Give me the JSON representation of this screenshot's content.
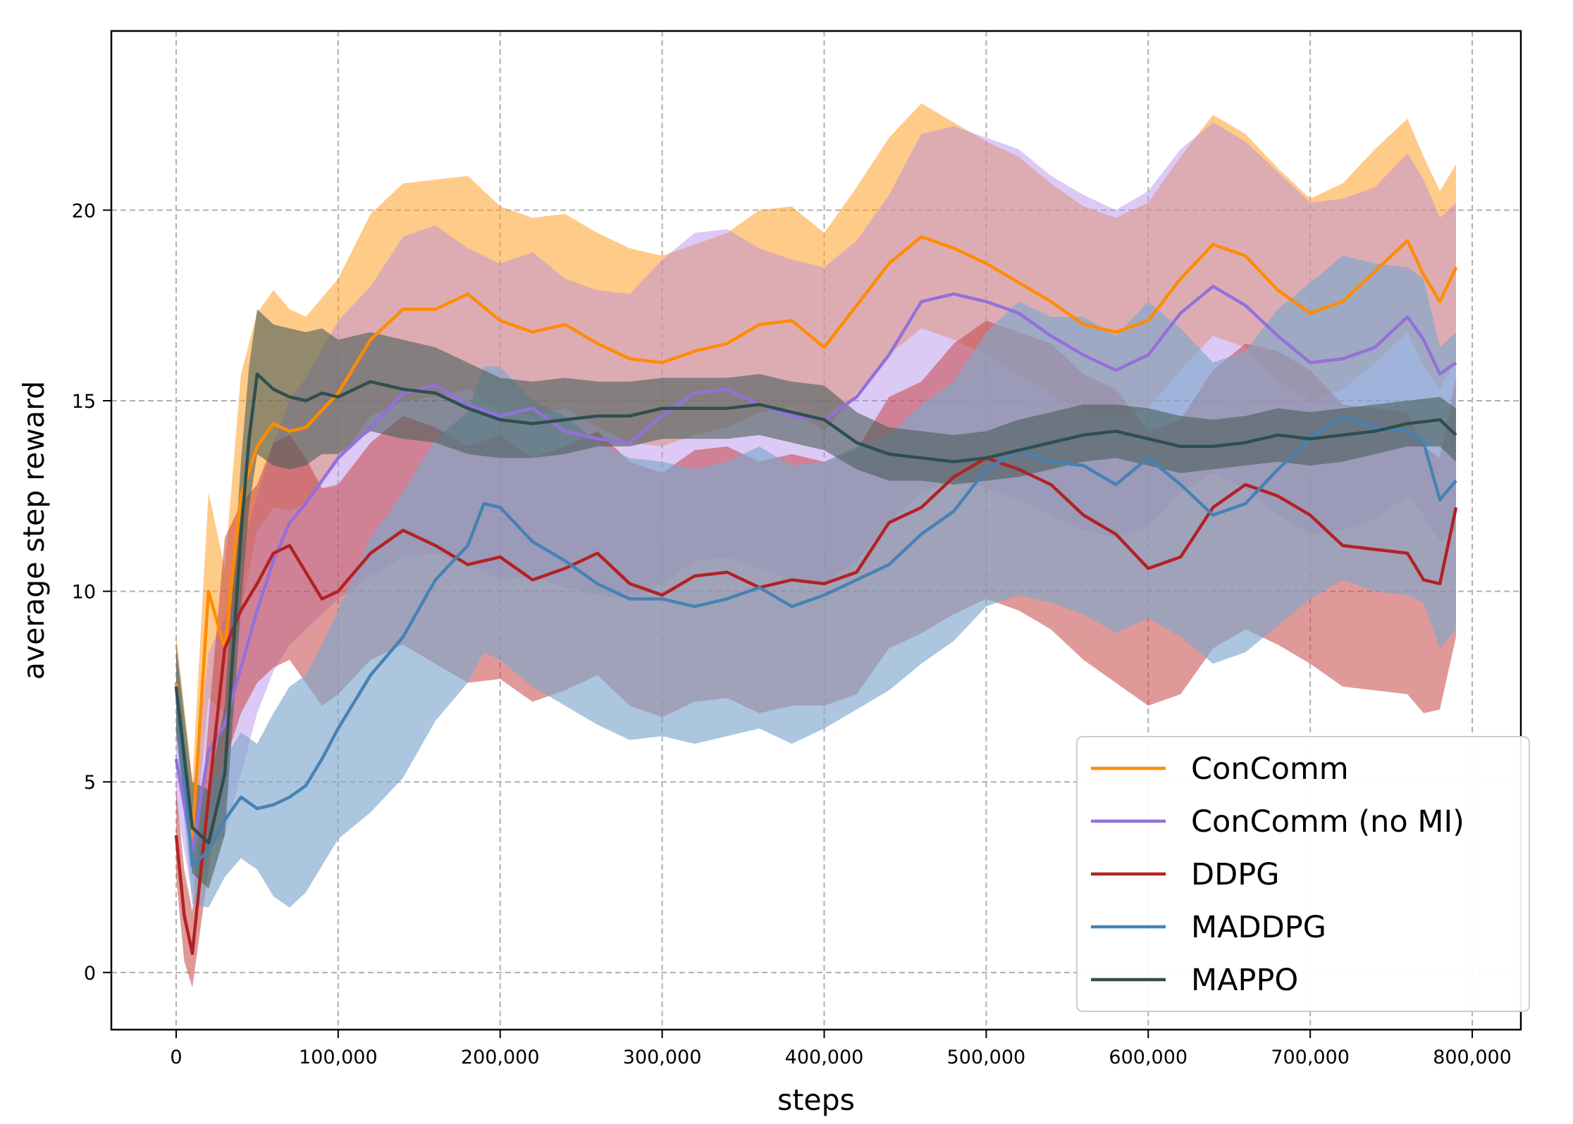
{
  "chart_data": {
    "type": "line",
    "title": "",
    "xlabel": "steps",
    "ylabel": "average step reward",
    "xlim": [
      -40000,
      830000
    ],
    "ylim": [
      -1.5,
      24.7
    ],
    "grid": true,
    "legend_position": "lower-right",
    "xticks": [
      0,
      100000,
      200000,
      300000,
      400000,
      500000,
      600000,
      700000,
      800000
    ],
    "xtick_labels": [
      "0",
      "100,000",
      "200,000",
      "300,000",
      "400,000",
      "500,000",
      "600,000",
      "700,000",
      "800,000"
    ],
    "yticks": [
      0,
      5,
      10,
      15,
      20
    ],
    "ytick_labels": [
      "0",
      "5",
      "10",
      "15",
      "20"
    ],
    "series": [
      {
        "name": "ConComm",
        "color": "#ff8c00",
        "band_color": "#ffa126",
        "band_opacity": 0.55,
        "x": [
          0,
          10000,
          20000,
          30000,
          40000,
          50000,
          60000,
          70000,
          80000,
          100000,
          120000,
          140000,
          160000,
          180000,
          200000,
          220000,
          240000,
          260000,
          280000,
          300000,
          320000,
          340000,
          360000,
          380000,
          400000,
          420000,
          440000,
          460000,
          480000,
          500000,
          520000,
          540000,
          560000,
          580000,
          600000,
          620000,
          640000,
          660000,
          680000,
          700000,
          720000,
          740000,
          760000,
          770000,
          780000,
          790000
        ],
        "y": [
          7.6,
          3.5,
          10.0,
          8.5,
          12.5,
          13.8,
          14.4,
          14.2,
          14.3,
          15.2,
          16.6,
          17.4,
          17.4,
          17.8,
          17.1,
          16.8,
          17.0,
          16.5,
          16.1,
          16.0,
          16.3,
          16.5,
          17.0,
          17.1,
          16.4,
          17.5,
          18.6,
          19.3,
          19.0,
          18.6,
          18.1,
          17.6,
          17.0,
          16.8,
          17.1,
          18.2,
          19.1,
          18.8,
          17.9,
          17.3,
          17.6,
          18.4,
          19.2,
          18.3,
          17.6,
          18.5
        ],
        "low": [
          6.4,
          2.6,
          7.2,
          6.8,
          9.5,
          11.6,
          12.2,
          12.1,
          12.3,
          13.4,
          14.6,
          15.0,
          15.1,
          15.3,
          14.8,
          14.6,
          14.8,
          14.3,
          13.9,
          13.8,
          14.1,
          14.3,
          14.7,
          14.8,
          14.2,
          15.2,
          16.2,
          16.9,
          16.6,
          16.2,
          15.7,
          15.2,
          14.7,
          14.5,
          14.8,
          15.8,
          16.7,
          16.4,
          15.5,
          15.0,
          15.3,
          16.0,
          16.8,
          15.9,
          15.3,
          16.1
        ],
        "high": [
          8.9,
          5.0,
          12.6,
          10.6,
          15.7,
          17.3,
          17.9,
          17.4,
          17.2,
          18.2,
          19.9,
          20.7,
          20.8,
          20.9,
          20.1,
          19.8,
          19.9,
          19.4,
          19.0,
          18.8,
          19.1,
          19.4,
          20.0,
          20.1,
          19.4,
          20.6,
          21.9,
          22.8,
          22.3,
          21.8,
          21.4,
          20.7,
          20.1,
          19.8,
          20.2,
          21.4,
          22.5,
          22.0,
          21.1,
          20.3,
          20.7,
          21.6,
          22.4,
          21.4,
          20.5,
          21.2
        ]
      },
      {
        "name": "ConComm (no MI)",
        "color": "#9370db",
        "band_color": "#b487e8",
        "band_opacity": 0.45,
        "x": [
          0,
          10000,
          20000,
          30000,
          40000,
          50000,
          60000,
          70000,
          80000,
          100000,
          120000,
          140000,
          160000,
          180000,
          200000,
          220000,
          240000,
          260000,
          280000,
          300000,
          320000,
          340000,
          360000,
          380000,
          400000,
          420000,
          440000,
          460000,
          480000,
          500000,
          520000,
          540000,
          560000,
          580000,
          600000,
          620000,
          640000,
          660000,
          680000,
          700000,
          720000,
          740000,
          760000,
          770000,
          780000,
          790000
        ],
        "y": [
          5.6,
          3.2,
          5.8,
          6.5,
          8.0,
          9.5,
          10.8,
          11.8,
          12.3,
          13.5,
          14.3,
          15.2,
          15.4,
          14.9,
          14.6,
          14.8,
          14.2,
          14.0,
          13.9,
          14.6,
          15.2,
          15.3,
          14.9,
          14.6,
          14.5,
          15.1,
          16.2,
          17.6,
          17.8,
          17.6,
          17.3,
          16.7,
          16.2,
          15.8,
          16.2,
          17.3,
          18.0,
          17.5,
          16.7,
          16.0,
          16.1,
          16.4,
          17.2,
          16.6,
          15.7,
          16.0
        ],
        "low": [
          4.4,
          2.0,
          3.2,
          3.6,
          5.2,
          6.8,
          7.9,
          8.6,
          9.0,
          9.8,
          10.4,
          10.9,
          11.0,
          10.7,
          10.3,
          10.4,
          10.1,
          9.9,
          9.8,
          10.2,
          10.8,
          10.9,
          10.6,
          10.3,
          10.2,
          10.8,
          11.8,
          12.6,
          12.9,
          12.7,
          12.4,
          12.0,
          11.6,
          11.4,
          11.7,
          12.6,
          13.1,
          12.7,
          12.0,
          11.5,
          11.6,
          11.9,
          12.5,
          12.0,
          11.3,
          11.6
        ],
        "high": [
          6.9,
          4.6,
          8.4,
          9.3,
          11.0,
          12.5,
          13.9,
          15.0,
          15.6,
          17.1,
          18.0,
          19.3,
          19.6,
          19.0,
          18.6,
          18.9,
          18.2,
          17.9,
          17.8,
          18.7,
          19.4,
          19.5,
          19.0,
          18.7,
          18.5,
          19.2,
          20.4,
          22.0,
          22.2,
          21.9,
          21.6,
          20.9,
          20.4,
          20.0,
          20.5,
          21.6,
          22.3,
          21.8,
          21.0,
          20.2,
          20.3,
          20.6,
          21.5,
          20.8,
          19.8,
          20.2
        ]
      },
      {
        "name": "DDPG",
        "color": "#b22222",
        "band_color": "#c44545",
        "band_opacity": 0.55,
        "x": [
          0,
          5000,
          10000,
          20000,
          30000,
          40000,
          50000,
          60000,
          70000,
          80000,
          90000,
          100000,
          120000,
          140000,
          160000,
          180000,
          200000,
          220000,
          240000,
          260000,
          280000,
          300000,
          320000,
          340000,
          360000,
          380000,
          400000,
          420000,
          440000,
          460000,
          480000,
          500000,
          520000,
          540000,
          560000,
          580000,
          600000,
          620000,
          640000,
          660000,
          680000,
          700000,
          720000,
          740000,
          760000,
          770000,
          780000,
          790000
        ],
        "y": [
          3.6,
          1.5,
          0.5,
          4.6,
          8.5,
          9.5,
          10.2,
          11.0,
          11.2,
          10.5,
          9.8,
          10.0,
          11.0,
          11.6,
          11.2,
          10.7,
          10.9,
          10.3,
          10.6,
          11.0,
          10.2,
          9.9,
          10.4,
          10.5,
          10.1,
          10.3,
          10.2,
          10.5,
          11.8,
          12.2,
          13.0,
          13.5,
          13.2,
          12.8,
          12.0,
          11.5,
          10.6,
          10.9,
          12.2,
          12.8,
          12.5,
          12.0,
          11.2,
          11.1,
          11.0,
          10.3,
          10.2,
          12.2
        ],
        "low": [
          2.5,
          0.3,
          -0.4,
          2.7,
          5.5,
          6.8,
          7.6,
          8.0,
          8.2,
          7.6,
          7.0,
          7.3,
          8.2,
          8.6,
          8.1,
          7.6,
          7.7,
          7.1,
          7.4,
          7.8,
          7.0,
          6.7,
          7.1,
          7.2,
          6.8,
          7.0,
          7.0,
          7.3,
          8.5,
          8.9,
          9.4,
          9.8,
          9.5,
          9.0,
          8.2,
          7.6,
          7.0,
          7.3,
          8.5,
          9.0,
          8.6,
          8.1,
          7.5,
          7.4,
          7.3,
          6.8,
          6.9,
          8.8
        ],
        "high": [
          4.8,
          2.7,
          1.6,
          6.6,
          11.4,
          12.3,
          12.8,
          13.9,
          14.1,
          13.5,
          12.7,
          12.8,
          13.9,
          14.6,
          14.3,
          13.8,
          14.1,
          13.5,
          13.8,
          14.2,
          13.4,
          13.1,
          13.7,
          13.8,
          13.4,
          13.6,
          13.4,
          13.7,
          15.1,
          15.5,
          16.5,
          17.1,
          16.8,
          16.5,
          15.7,
          15.3,
          14.2,
          14.5,
          15.8,
          16.5,
          16.3,
          15.8,
          14.9,
          14.8,
          14.7,
          13.8,
          13.5,
          15.6
        ]
      },
      {
        "name": "MADDPG",
        "color": "#4682b4",
        "band_color": "#7ea7cc",
        "band_opacity": 0.65,
        "x": [
          0,
          10000,
          20000,
          30000,
          40000,
          50000,
          60000,
          70000,
          80000,
          90000,
          100000,
          120000,
          140000,
          160000,
          180000,
          190000,
          200000,
          220000,
          240000,
          260000,
          280000,
          300000,
          320000,
          340000,
          360000,
          380000,
          400000,
          420000,
          440000,
          460000,
          480000,
          500000,
          520000,
          540000,
          560000,
          580000,
          600000,
          620000,
          640000,
          660000,
          680000,
          700000,
          720000,
          740000,
          760000,
          770000,
          780000,
          790000
        ],
        "y": [
          7.5,
          2.8,
          3.2,
          4.0,
          4.6,
          4.3,
          4.4,
          4.6,
          4.9,
          5.6,
          6.4,
          7.8,
          8.8,
          10.3,
          11.2,
          12.3,
          12.2,
          11.3,
          10.8,
          10.2,
          9.8,
          9.8,
          9.6,
          9.8,
          10.1,
          9.6,
          9.9,
          10.3,
          10.7,
          11.5,
          12.1,
          13.2,
          13.7,
          13.4,
          13.3,
          12.8,
          13.5,
          12.8,
          12.0,
          12.3,
          13.2,
          14.0,
          14.6,
          14.3,
          14.2,
          13.9,
          12.4,
          12.9
        ],
        "low": [
          6.3,
          1.8,
          1.7,
          2.5,
          3.0,
          2.7,
          2.0,
          1.7,
          2.1,
          2.8,
          3.5,
          4.2,
          5.1,
          6.6,
          7.6,
          8.4,
          8.2,
          7.5,
          7.0,
          6.5,
          6.1,
          6.2,
          6.0,
          6.2,
          6.4,
          6.0,
          6.4,
          6.9,
          7.4,
          8.1,
          8.7,
          9.6,
          9.9,
          9.7,
          9.4,
          8.9,
          9.3,
          8.8,
          8.1,
          8.4,
          9.1,
          9.8,
          10.3,
          10.0,
          9.9,
          9.7,
          8.5,
          9.0
        ],
        "high": [
          8.6,
          4.0,
          4.8,
          5.6,
          6.3,
          6.0,
          6.8,
          7.5,
          7.8,
          8.6,
          9.5,
          11.4,
          12.6,
          14.0,
          14.7,
          15.9,
          15.9,
          15.0,
          14.6,
          13.9,
          13.5,
          13.4,
          13.2,
          13.4,
          13.8,
          13.3,
          13.4,
          13.8,
          14.1,
          14.9,
          15.5,
          16.8,
          17.6,
          17.2,
          17.2,
          16.7,
          17.6,
          16.9,
          16.0,
          16.3,
          17.4,
          18.1,
          18.8,
          18.6,
          18.5,
          18.2,
          16.4,
          16.8
        ]
      },
      {
        "name": "MAPPO",
        "color": "#2f4f4f",
        "band_color": "#4b5f5a",
        "band_opacity": 0.6,
        "x": [
          0,
          10000,
          20000,
          30000,
          40000,
          45000,
          50000,
          60000,
          70000,
          80000,
          90000,
          100000,
          120000,
          140000,
          160000,
          180000,
          200000,
          220000,
          240000,
          260000,
          280000,
          300000,
          320000,
          340000,
          360000,
          380000,
          400000,
          420000,
          440000,
          460000,
          480000,
          500000,
          520000,
          540000,
          560000,
          580000,
          600000,
          620000,
          640000,
          660000,
          680000,
          700000,
          720000,
          740000,
          760000,
          780000,
          790000
        ],
        "y": [
          7.5,
          3.8,
          3.4,
          5.2,
          11.5,
          14.0,
          15.7,
          15.3,
          15.1,
          15.0,
          15.2,
          15.1,
          15.5,
          15.3,
          15.2,
          14.8,
          14.5,
          14.4,
          14.5,
          14.6,
          14.6,
          14.8,
          14.8,
          14.8,
          14.9,
          14.7,
          14.5,
          13.9,
          13.6,
          13.5,
          13.4,
          13.5,
          13.7,
          13.9,
          14.1,
          14.2,
          14.0,
          13.8,
          13.8,
          13.9,
          14.1,
          14.0,
          14.1,
          14.2,
          14.4,
          14.5,
          14.1
        ],
        "low": [
          6.3,
          2.6,
          2.2,
          3.6,
          9.6,
          12.2,
          13.6,
          13.3,
          13.2,
          13.3,
          13.6,
          13.6,
          14.2,
          14.0,
          13.9,
          13.6,
          13.5,
          13.5,
          13.6,
          13.8,
          13.8,
          14.0,
          14.0,
          14.0,
          14.1,
          13.9,
          13.7,
          13.2,
          12.9,
          12.9,
          12.8,
          12.9,
          13.0,
          13.2,
          13.4,
          13.5,
          13.3,
          13.1,
          13.2,
          13.3,
          13.4,
          13.3,
          13.4,
          13.6,
          13.8,
          13.8,
          13.4
        ],
        "high": [
          8.6,
          5.0,
          4.8,
          7.0,
          13.4,
          15.9,
          17.4,
          17.0,
          16.9,
          16.8,
          16.9,
          16.6,
          16.8,
          16.6,
          16.4,
          16.0,
          15.6,
          15.5,
          15.6,
          15.5,
          15.5,
          15.6,
          15.6,
          15.6,
          15.7,
          15.5,
          15.4,
          14.7,
          14.3,
          14.2,
          14.1,
          14.2,
          14.5,
          14.7,
          14.9,
          14.9,
          14.8,
          14.6,
          14.5,
          14.6,
          14.8,
          14.7,
          14.8,
          14.9,
          15.0,
          15.1,
          14.8
        ]
      }
    ]
  }
}
